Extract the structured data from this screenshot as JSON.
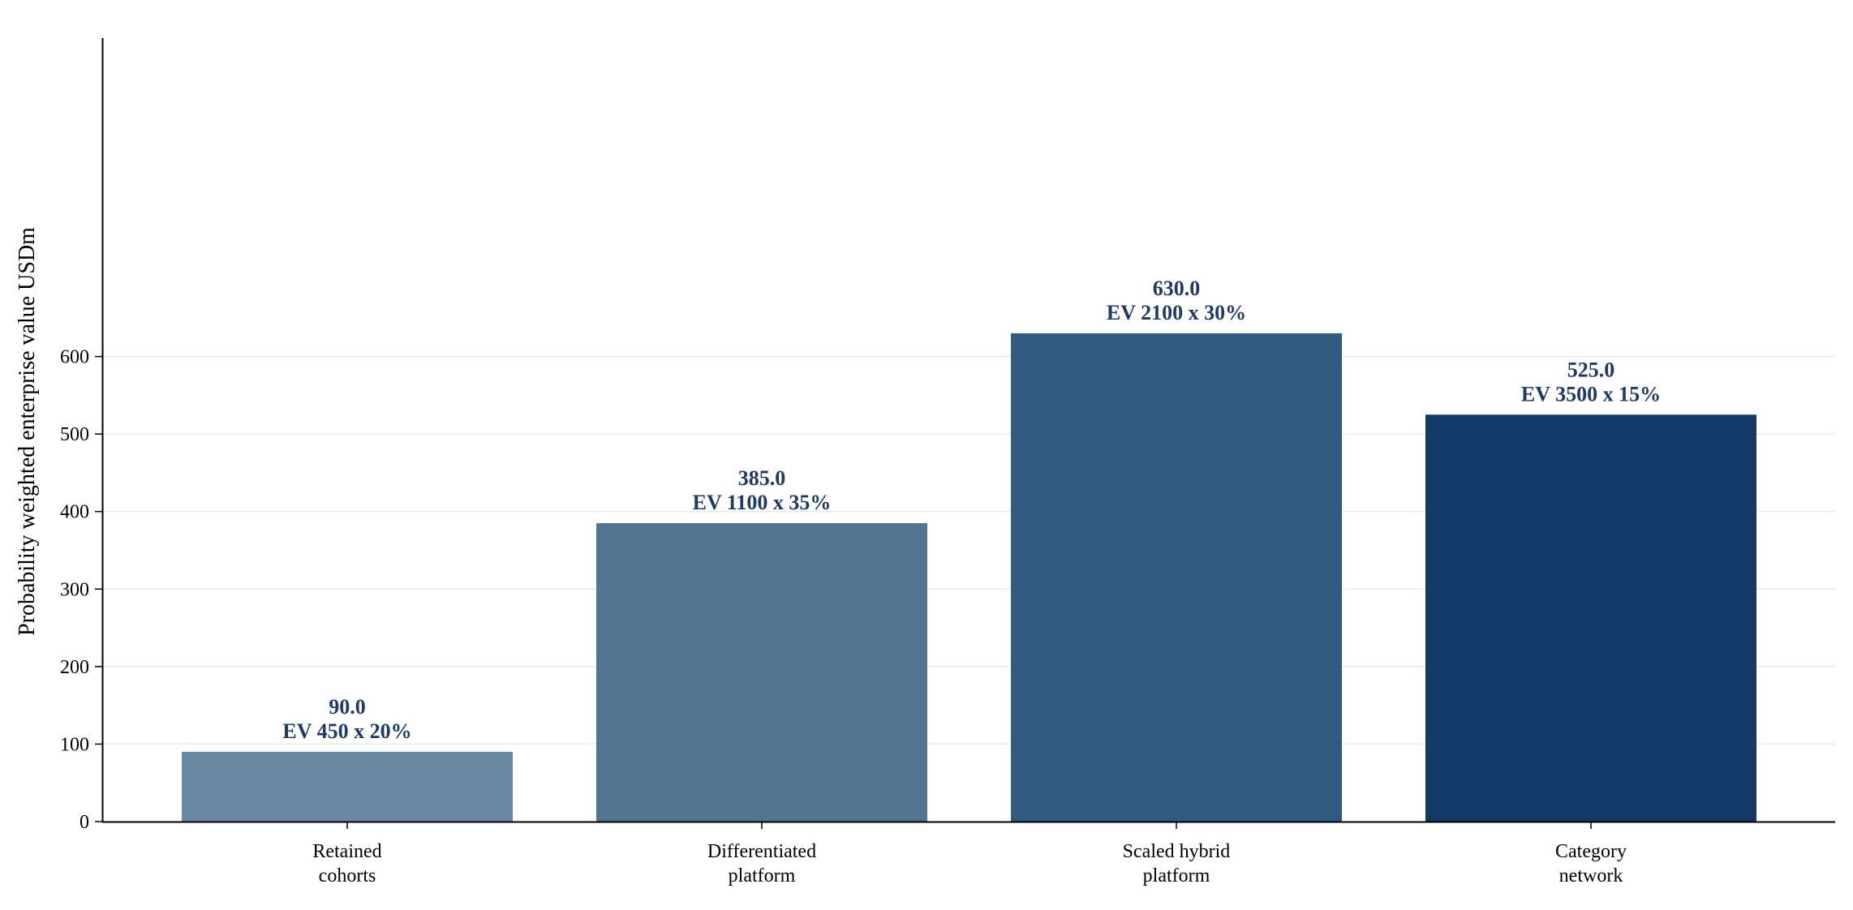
{
  "chart_data": {
    "type": "bar",
    "title": "",
    "xlabel": "",
    "ylabel": "Probability weighted enterprise value USDm",
    "ylim": [
      0,
      660
    ],
    "yticks": [
      0,
      100,
      200,
      300,
      400,
      500,
      600
    ],
    "grid": "horizontal",
    "categories": [
      [
        "Retained",
        "cohorts"
      ],
      [
        "Differentiated",
        "platform"
      ],
      [
        "Scaled hybrid",
        "platform"
      ],
      [
        "Category",
        "network"
      ]
    ],
    "values": [
      90.0,
      385.0,
      630.0,
      525.0
    ],
    "value_labels": [
      "90.0",
      "385.0",
      "630.0",
      "525.0"
    ],
    "annotations": [
      "EV 450 x 20%",
      "EV 1100 x 35%",
      "EV 2100 x 30%",
      "EV 3500 x 15%"
    ],
    "colors": [
      "#6b88a3",
      "#527491",
      "#325b84",
      "#143966"
    ],
    "label_color": "#1f3b63"
  }
}
